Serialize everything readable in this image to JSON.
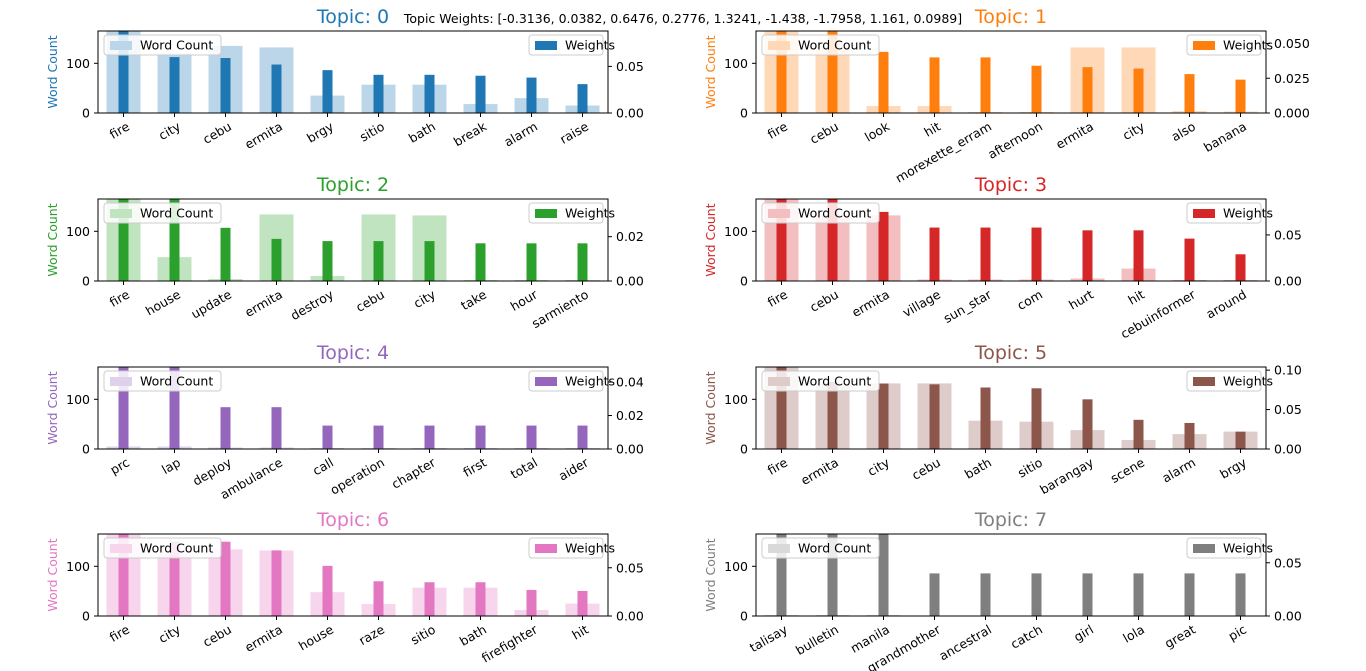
{
  "suptitle": "Topic Weights: [-0.3136, 0.0382, 0.6476, 0.2776, 1.3241, -1.438, -1.7958, 1.161, 0.0989]",
  "legend_labels": {
    "count": "Word Count",
    "weight": "Weights"
  },
  "chart_data": [
    {
      "type": "bar",
      "title": "Topic: 0",
      "color": "#1f77b4",
      "ylabel": "Word Count",
      "categories": [
        "fire",
        "city",
        "cebu",
        "ermita",
        "brgy",
        "sitio",
        "bath",
        "break",
        "alarm",
        "raise"
      ],
      "series": [
        {
          "name": "Word Count",
          "values": [
            165,
            120,
            135,
            132,
            35,
            57,
            57,
            18,
            30,
            15
          ]
        },
        {
          "name": "Weights",
          "values": [
            0.088,
            0.06,
            0.059,
            0.052,
            0.046,
            0.041,
            0.041,
            0.04,
            0.038,
            0.031
          ]
        }
      ],
      "ylim_left": [
        0,
        165
      ],
      "yticks_left": [
        0,
        100
      ],
      "ylim_right": [
        0,
        0.088
      ],
      "yticks_right": [
        0.0,
        0.05
      ],
      "yticks_right_labels": [
        "0.00",
        "0.05"
      ]
    },
    {
      "type": "bar",
      "title": "Topic: 1",
      "color": "#ff7f0e",
      "ylabel": "Word Count",
      "categories": [
        "fire",
        "cebu",
        "look",
        "hit",
        "morexette_erram",
        "afternoon",
        "ermita",
        "city",
        "also",
        "banana"
      ],
      "series": [
        {
          "name": "Word Count",
          "values": [
            165,
            135,
            14,
            14,
            2,
            2,
            132,
            132,
            4,
            3
          ]
        },
        {
          "name": "Weights",
          "values": [
            0.059,
            0.059,
            0.044,
            0.04,
            0.04,
            0.034,
            0.033,
            0.032,
            0.028,
            0.024
          ]
        }
      ],
      "ylim_left": [
        0,
        165
      ],
      "yticks_left": [
        0,
        100
      ],
      "ylim_right": [
        0,
        0.059
      ],
      "yticks_right": [
        0.0,
        0.025,
        0.05
      ],
      "yticks_right_labels": [
        "0.000",
        "0.025",
        "0.050"
      ]
    },
    {
      "type": "bar",
      "title": "Topic: 2",
      "color": "#2ca02c",
      "ylabel": "Word Count",
      "categories": [
        "fire",
        "house",
        "update",
        "ermita",
        "destroy",
        "cebu",
        "city",
        "take",
        "hour",
        "sarmiento"
      ],
      "series": [
        {
          "name": "Word Count",
          "values": [
            165,
            48,
            4,
            134,
            10,
            134,
            132,
            2,
            2,
            2
          ]
        },
        {
          "name": "Weights",
          "values": [
            0.037,
            0.037,
            0.024,
            0.019,
            0.018,
            0.018,
            0.018,
            0.017,
            0.017,
            0.017
          ]
        }
      ],
      "ylim_left": [
        0,
        165
      ],
      "yticks_left": [
        0,
        100
      ],
      "ylim_right": [
        0,
        0.037
      ],
      "yticks_right": [
        0.0,
        0.02
      ],
      "yticks_right_labels": [
        "0.00",
        "0.02"
      ]
    },
    {
      "type": "bar",
      "title": "Topic: 3",
      "color": "#d62728",
      "ylabel": "Word Count",
      "categories": [
        "fire",
        "cebu",
        "ermita",
        "village",
        "sun_star",
        "com",
        "hurt",
        "hit",
        "cebuinformer",
        "around"
      ],
      "series": [
        {
          "name": "Word Count",
          "values": [
            165,
            134,
            132,
            3,
            3,
            3,
            5,
            25,
            2,
            2
          ]
        },
        {
          "name": "Weights",
          "values": [
            0.089,
            0.089,
            0.075,
            0.058,
            0.058,
            0.058,
            0.055,
            0.055,
            0.046,
            0.029
          ]
        }
      ],
      "ylim_left": [
        0,
        165
      ],
      "yticks_left": [
        0,
        100
      ],
      "ylim_right": [
        0,
        0.089
      ],
      "yticks_right": [
        0.0,
        0.05
      ],
      "yticks_right_labels": [
        "0.00",
        "0.05"
      ]
    },
    {
      "type": "bar",
      "title": "Topic: 4",
      "color": "#9467bd",
      "ylabel": "Word Count",
      "categories": [
        "prc",
        "lap",
        "deploy",
        "ambulance",
        "call",
        "operation",
        "chapter",
        "first",
        "total",
        "aider"
      ],
      "series": [
        {
          "name": "Word Count",
          "values": [
            5,
            5,
            3,
            3,
            2,
            2,
            2,
            2,
            2,
            2
          ]
        },
        {
          "name": "Weights",
          "values": [
            0.049,
            0.049,
            0.025,
            0.025,
            0.014,
            0.014,
            0.014,
            0.014,
            0.014,
            0.014
          ]
        }
      ],
      "ylim_left": [
        0,
        165
      ],
      "yticks_left": [
        0,
        100
      ],
      "ylim_right": [
        0,
        0.049
      ],
      "yticks_right": [
        0.0,
        0.02,
        0.04
      ],
      "yticks_right_labels": [
        "0.00",
        "0.02",
        "0.04"
      ]
    },
    {
      "type": "bar",
      "title": "Topic: 5",
      "color": "#8c564b",
      "ylabel": "Word Count",
      "categories": [
        "fire",
        "ermita",
        "city",
        "cebu",
        "bath",
        "sitio",
        "barangay",
        "scene",
        "alarm",
        "brgy"
      ],
      "series": [
        {
          "name": "Word Count",
          "values": [
            165,
            132,
            132,
            132,
            57,
            55,
            38,
            18,
            30,
            35
          ]
        },
        {
          "name": "Weights",
          "values": [
            0.104,
            0.085,
            0.083,
            0.082,
            0.078,
            0.077,
            0.063,
            0.037,
            0.033,
            0.022
          ]
        }
      ],
      "ylim_left": [
        0,
        165
      ],
      "yticks_left": [
        0,
        100
      ],
      "ylim_right": [
        0,
        0.104
      ],
      "yticks_right": [
        0.0,
        0.05,
        0.1
      ],
      "yticks_right_labels": [
        "0.00",
        "0.05",
        "0.10"
      ]
    },
    {
      "type": "bar",
      "title": "Topic: 6",
      "color": "#e377c2",
      "ylabel": "Word Count",
      "categories": [
        "fire",
        "city",
        "cebu",
        "ermita",
        "house",
        "raze",
        "sitio",
        "bath",
        "firefighter",
        "hit"
      ],
      "series": [
        {
          "name": "Word Count",
          "values": [
            165,
            132,
            134,
            132,
            48,
            24,
            57,
            57,
            12,
            25
          ]
        },
        {
          "name": "Weights",
          "values": [
            0.085,
            0.077,
            0.077,
            0.068,
            0.052,
            0.036,
            0.035,
            0.035,
            0.027,
            0.026
          ]
        }
      ],
      "ylim_left": [
        0,
        165
      ],
      "yticks_left": [
        0,
        100
      ],
      "ylim_right": [
        0,
        0.085
      ],
      "yticks_right": [
        0.0,
        0.05
      ],
      "yticks_right_labels": [
        "0.00",
        "0.05"
      ]
    },
    {
      "type": "bar",
      "title": "Topic: 7",
      "color": "#7f7f7f",
      "ylabel": "Word Count",
      "categories": [
        "talisay",
        "bulletin",
        "manila",
        "grandmother",
        "ancestral",
        "catch",
        "girl",
        "lola",
        "great",
        "pic"
      ],
      "series": [
        {
          "name": "Word Count",
          "values": [
            2,
            2,
            2,
            1,
            1,
            1,
            1,
            1,
            1,
            1
          ]
        },
        {
          "name": "Weights",
          "values": [
            0.077,
            0.077,
            0.077,
            0.04,
            0.04,
            0.04,
            0.04,
            0.04,
            0.04,
            0.04
          ]
        }
      ],
      "ylim_left": [
        0,
        165
      ],
      "yticks_left": [
        0,
        100
      ],
      "ylim_right": [
        0,
        0.077
      ],
      "yticks_right": [
        0.0,
        0.05
      ],
      "yticks_right_labels": [
        "0.00",
        "0.05"
      ]
    }
  ]
}
